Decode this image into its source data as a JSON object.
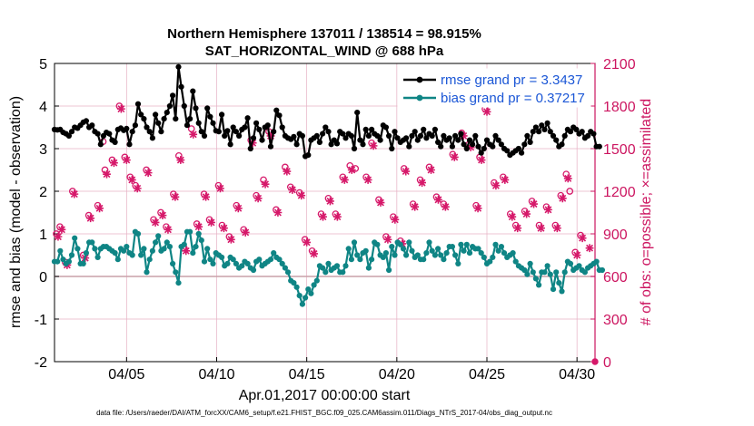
{
  "chart_data": {
    "type": "line",
    "title": "Northern Hemisphere 137011 / 138514 = 98.915%",
    "subtitle": "SAT_HORIZONTAL_WIND @ 688 hPa",
    "xlabel": "Apr.01,2017 00:00:00 start",
    "ylabel": "rmse and bias (model - observation)",
    "y2label": "# of obs: o=possible; ×=assimilated",
    "ylim": [
      -2,
      5
    ],
    "y2lim": [
      0,
      2100
    ],
    "xlim": [
      1,
      31
    ],
    "x_ticks": [
      5,
      10,
      15,
      20,
      25,
      30
    ],
    "x_tick_labels": [
      "04/05",
      "04/10",
      "04/15",
      "04/20",
      "04/25",
      "04/30"
    ],
    "y_ticks": [
      -2,
      -1,
      0,
      1,
      2,
      3,
      4,
      5
    ],
    "y_tick_labels": [
      "-2",
      "-1",
      "0",
      "1",
      "2",
      "3",
      "4",
      "5"
    ],
    "y2_ticks": [
      0,
      300,
      600,
      900,
      1200,
      1500,
      1800,
      2100
    ],
    "y2_tick_labels": [
      "0",
      "300",
      "600",
      "900",
      "1200",
      "1500",
      "1800",
      "2100"
    ],
    "grid": true,
    "legend_position": "top-right",
    "colors": {
      "rmse": "#000000",
      "bias": "#0f8585",
      "obs": "#d6196a",
      "right_axis": "#cc1560",
      "legend_text": "#1a56d6",
      "grid": "#e6b0c4",
      "zero_line": "#c8a0a8"
    },
    "series": [
      {
        "name": "rmse grand pr = 3.3437",
        "color": "#000000",
        "marker": "filled-circle",
        "values": [
          3.45,
          3.44,
          3.45,
          3.38,
          3.35,
          3.3,
          3.4,
          3.5,
          3.48,
          3.55,
          3.62,
          3.65,
          3.5,
          3.55,
          3.4,
          3.35,
          3.1,
          3.3,
          3.38,
          3.35,
          3.2,
          3.15,
          3.45,
          3.48,
          3.43,
          3.47,
          3.1,
          3.4,
          3.55,
          4.05,
          3.8,
          3.7,
          3.5,
          3.4,
          3.25,
          3.8,
          3.6,
          3.4,
          3.7,
          3.85,
          4.0,
          4.25,
          3.7,
          4.92,
          4.45,
          4.0,
          3.55,
          3.7,
          4.35,
          3.95,
          3.6,
          3.4,
          3.3,
          3.95,
          3.75,
          3.6,
          3.42,
          3.4,
          3.8,
          3.3,
          3.42,
          3.1,
          3.5,
          3.4,
          3.3,
          3.45,
          3.5,
          3.72,
          3.0,
          3.25,
          3.6,
          3.45,
          3.2,
          3.5,
          3.55,
          3.05,
          3.4,
          3.9,
          3.78,
          3.5,
          3.3,
          3.25,
          3.22,
          3.28,
          3.1,
          3.35,
          3.3,
          2.82,
          2.85,
          3.2,
          3.25,
          3.3,
          3.15,
          3.35,
          3.5,
          3.4,
          3.1,
          3.2,
          3.12,
          3.4,
          3.35,
          3.25,
          3.35,
          3.3,
          3.0,
          3.85,
          3.2,
          3.1,
          3.45,
          3.3,
          3.45,
          3.35,
          3.3,
          3.2,
          3.55,
          3.5,
          3.3,
          3.0,
          3.4,
          3.25,
          3.15,
          3.2,
          3.25,
          3.05,
          3.3,
          3.4,
          3.2,
          3.3,
          3.45,
          3.25,
          3.35,
          3.3,
          3.45,
          3.15,
          3.05,
          3.3,
          3.2,
          3.25,
          3.05,
          3.3,
          3.2,
          3.35,
          3.1,
          3.0,
          3.2,
          3.1,
          3.3,
          3.05,
          2.9,
          3.0,
          3.2,
          3.1,
          3.05,
          3.3,
          3.2,
          3.1,
          3.0,
          2.95,
          2.85,
          2.9,
          2.95,
          3.0,
          2.9,
          3.1,
          3.3,
          3.15,
          3.4,
          3.5,
          3.4,
          3.55,
          3.45,
          3.6,
          3.4,
          3.3,
          3.2,
          3.05,
          3.1,
          3.3,
          3.45,
          3.4,
          3.5,
          3.45,
          3.35,
          3.4,
          3.25,
          3.3,
          3.4,
          3.35,
          3.05,
          3.05
        ],
        "x_start": 1.0,
        "x_step": 0.16
      },
      {
        "name": "bias grand pr = 0.37217",
        "color": "#0f8585",
        "marker": "filled-circle",
        "values": [
          0.35,
          0.35,
          0.6,
          0.4,
          0.3,
          0.35,
          0.5,
          0.9,
          0.65,
          0.3,
          0.3,
          0.55,
          0.8,
          0.8,
          0.65,
          0.45,
          0.65,
          0.7,
          0.7,
          0.65,
          0.6,
          0.55,
          0.4,
          0.65,
          0.6,
          0.7,
          0.55,
          0.5,
          1.05,
          1.0,
          0.5,
          0.65,
          0.1,
          0.4,
          0.6,
          0.8,
          0.95,
          0.6,
          0.65,
          0.8,
          0.7,
          0.3,
          0.1,
          -0.15,
          0.7,
          0.75,
          1.05,
          1.05,
          0.55,
          0.7,
          1.0,
          0.85,
          0.35,
          0.65,
          0.4,
          0.3,
          0.55,
          0.5,
          0.45,
          0.25,
          0.3,
          0.45,
          0.4,
          0.3,
          0.2,
          0.25,
          0.35,
          0.3,
          0.2,
          0.15,
          0.35,
          0.4,
          0.25,
          0.3,
          0.35,
          0.4,
          0.55,
          0.45,
          0.4,
          0.3,
          0.2,
          0.1,
          -0.1,
          -0.15,
          -0.25,
          -0.45,
          -0.65,
          -0.5,
          -0.3,
          -0.4,
          -0.2,
          -0.1,
          0.25,
          0.2,
          0.1,
          0.3,
          0.15,
          0.2,
          0.25,
          0.1,
          0.1,
          0.25,
          0.65,
          0.4,
          0.8,
          0.5,
          0.4,
          0.55,
          0.6,
          0.2,
          0.4,
          0.8,
          0.75,
          0.5,
          0.45,
          0.55,
          0.15,
          0.7,
          0.5,
          0.8,
          0.75,
          0.65,
          0.5,
          0.8,
          0.6,
          0.45,
          0.5,
          0.4,
          0.4,
          0.55,
          0.8,
          0.6,
          0.5,
          0.65,
          0.5,
          0.4,
          0.55,
          0.7,
          0.7,
          0.5,
          0.3,
          0.75,
          0.6,
          0.75,
          0.55,
          0.7,
          0.65,
          0.65,
          0.55,
          0.45,
          0.3,
          0.35,
          0.45,
          0.75,
          0.6,
          0.7,
          0.55,
          0.45,
          0.5,
          0.55,
          0.35,
          0.25,
          0.2,
          0.15,
          0.05,
          0.3,
          0.1,
          -0.05,
          -0.2,
          0.1,
          0.1,
          0.25,
          0.05,
          -0.3,
          0.1,
          -0.15,
          -0.35,
          0.1,
          0.35,
          0.3,
          0.15,
          0.2,
          0.25,
          0.15,
          0.1,
          0.2,
          0.25,
          0.3,
          0.35,
          0.15,
          0.15
        ],
        "x_start": 1.0,
        "x_step": 0.16
      }
    ],
    "obs_possible": {
      "name": "possible",
      "marker": "o",
      "color": "#d6196a",
      "points": [
        [
          1.1,
          900
        ],
        [
          1.3,
          950
        ],
        [
          1.6,
          700
        ],
        [
          2.0,
          1200
        ],
        [
          2.6,
          750
        ],
        [
          2.9,
          1030
        ],
        [
          3.4,
          1100
        ],
        [
          3.7,
          1550
        ],
        [
          3.8,
          1350
        ],
        [
          4.2,
          1420
        ],
        [
          4.6,
          1800
        ],
        [
          4.9,
          1440
        ],
        [
          5.2,
          1300
        ],
        [
          5.5,
          1240
        ],
        [
          6.1,
          1350
        ],
        [
          6.5,
          1000
        ],
        [
          6.9,
          1050
        ],
        [
          7.2,
          950
        ],
        [
          7.6,
          1180
        ],
        [
          7.9,
          1450
        ],
        [
          8.2,
          800
        ],
        [
          8.6,
          1640
        ],
        [
          8.9,
          970
        ],
        [
          9.3,
          1180
        ],
        [
          9.6,
          1000
        ],
        [
          10.1,
          1240
        ],
        [
          10.3,
          960
        ],
        [
          10.7,
          880
        ],
        [
          11.1,
          1100
        ],
        [
          11.5,
          930
        ],
        [
          11.9,
          1560
        ],
        [
          12.2,
          1170
        ],
        [
          12.6,
          1280
        ],
        [
          12.9,
          1620
        ],
        [
          13.3,
          1070
        ],
        [
          13.8,
          1370
        ],
        [
          14.1,
          1230
        ],
        [
          14.6,
          1190
        ],
        [
          14.9,
          860
        ],
        [
          15.3,
          780
        ],
        [
          15.8,
          1040
        ],
        [
          16.2,
          1150
        ],
        [
          16.6,
          1040
        ],
        [
          17.0,
          1300
        ],
        [
          17.4,
          1380
        ],
        [
          17.7,
          1360
        ],
        [
          18.3,
          1300
        ],
        [
          18.6,
          1540
        ],
        [
          19.0,
          1140
        ],
        [
          19.4,
          880
        ],
        [
          19.8,
          1020
        ],
        [
          20.2,
          850
        ],
        [
          20.4,
          1360
        ],
        [
          20.9,
          1110
        ],
        [
          21.3,
          1280
        ],
        [
          21.8,
          1370
        ],
        [
          22.2,
          1160
        ],
        [
          22.6,
          1110
        ],
        [
          23.1,
          1460
        ],
        [
          23.6,
          1610
        ],
        [
          24.0,
          1530
        ],
        [
          24.4,
          1100
        ],
        [
          24.6,
          1440
        ],
        [
          24.9,
          1780
        ],
        [
          25.4,
          1260
        ],
        [
          25.9,
          1300
        ],
        [
          26.3,
          1040
        ],
        [
          26.6,
          960
        ],
        [
          27.1,
          1060
        ],
        [
          27.5,
          1130
        ],
        [
          27.9,
          960
        ],
        [
          28.3,
          1090
        ],
        [
          28.8,
          960
        ],
        [
          29.1,
          1170
        ],
        [
          29.4,
          1320
        ],
        [
          29.6,
          1200
        ],
        [
          29.9,
          770
        ],
        [
          30.2,
          890
        ]
      ]
    },
    "obs_assimilated": {
      "name": "assimilated",
      "marker": "x",
      "color": "#d6196a",
      "points": [
        [
          1.2,
          880
        ],
        [
          1.4,
          930
        ],
        [
          1.7,
          680
        ],
        [
          2.1,
          1180
        ],
        [
          2.7,
          730
        ],
        [
          3.0,
          1010
        ],
        [
          3.5,
          1080
        ],
        [
          3.9,
          1320
        ],
        [
          4.3,
          1400
        ],
        [
          4.7,
          1780
        ],
        [
          5.0,
          1420
        ],
        [
          5.3,
          1280
        ],
        [
          5.6,
          1220
        ],
        [
          6.2,
          1330
        ],
        [
          6.6,
          980
        ],
        [
          7.0,
          1030
        ],
        [
          7.3,
          930
        ],
        [
          7.7,
          1160
        ],
        [
          8.0,
          1420
        ],
        [
          8.3,
          780
        ],
        [
          8.7,
          1600
        ],
        [
          9.0,
          950
        ],
        [
          9.4,
          1160
        ],
        [
          9.7,
          980
        ],
        [
          10.2,
          1220
        ],
        [
          10.4,
          940
        ],
        [
          10.8,
          860
        ],
        [
          11.2,
          1080
        ],
        [
          11.6,
          910
        ],
        [
          12.0,
          1540
        ],
        [
          12.3,
          1150
        ],
        [
          12.7,
          1250
        ],
        [
          13.0,
          1590
        ],
        [
          13.4,
          1050
        ],
        [
          13.9,
          1340
        ],
        [
          14.2,
          1210
        ],
        [
          14.7,
          1170
        ],
        [
          15.0,
          840
        ],
        [
          15.4,
          760
        ],
        [
          15.9,
          1020
        ],
        [
          16.3,
          1130
        ],
        [
          16.7,
          1020
        ],
        [
          17.1,
          1280
        ],
        [
          17.5,
          1350
        ],
        [
          18.4,
          1280
        ],
        [
          18.7,
          1520
        ],
        [
          19.1,
          1120
        ],
        [
          19.5,
          860
        ],
        [
          19.9,
          1000
        ],
        [
          20.3,
          830
        ],
        [
          20.5,
          1340
        ],
        [
          21.0,
          1090
        ],
        [
          21.4,
          1260
        ],
        [
          21.9,
          1350
        ],
        [
          22.3,
          1140
        ],
        [
          22.7,
          1090
        ],
        [
          23.2,
          1440
        ],
        [
          23.7,
          1590
        ],
        [
          24.1,
          1510
        ],
        [
          24.5,
          1080
        ],
        [
          24.7,
          1420
        ],
        [
          25.0,
          1760
        ],
        [
          25.5,
          1240
        ],
        [
          26.0,
          1280
        ],
        [
          26.4,
          1020
        ],
        [
          26.7,
          940
        ],
        [
          27.2,
          1040
        ],
        [
          27.6,
          1110
        ],
        [
          28.0,
          940
        ],
        [
          28.4,
          1070
        ],
        [
          28.9,
          940
        ],
        [
          29.2,
          1150
        ],
        [
          29.5,
          1290
        ],
        [
          30.0,
          750
        ],
        [
          30.3,
          870
        ],
        [
          30.7,
          800
        ]
      ]
    },
    "annotations": {
      "footer": "data file: /Users/raeder/DAI/ATM_forcXX/CAM6_setup/f.e21.FHIST_BGC.f09_025.CAM6assim.011/Diags_NTrS_2017-04/obs_diag_output.nc"
    }
  }
}
